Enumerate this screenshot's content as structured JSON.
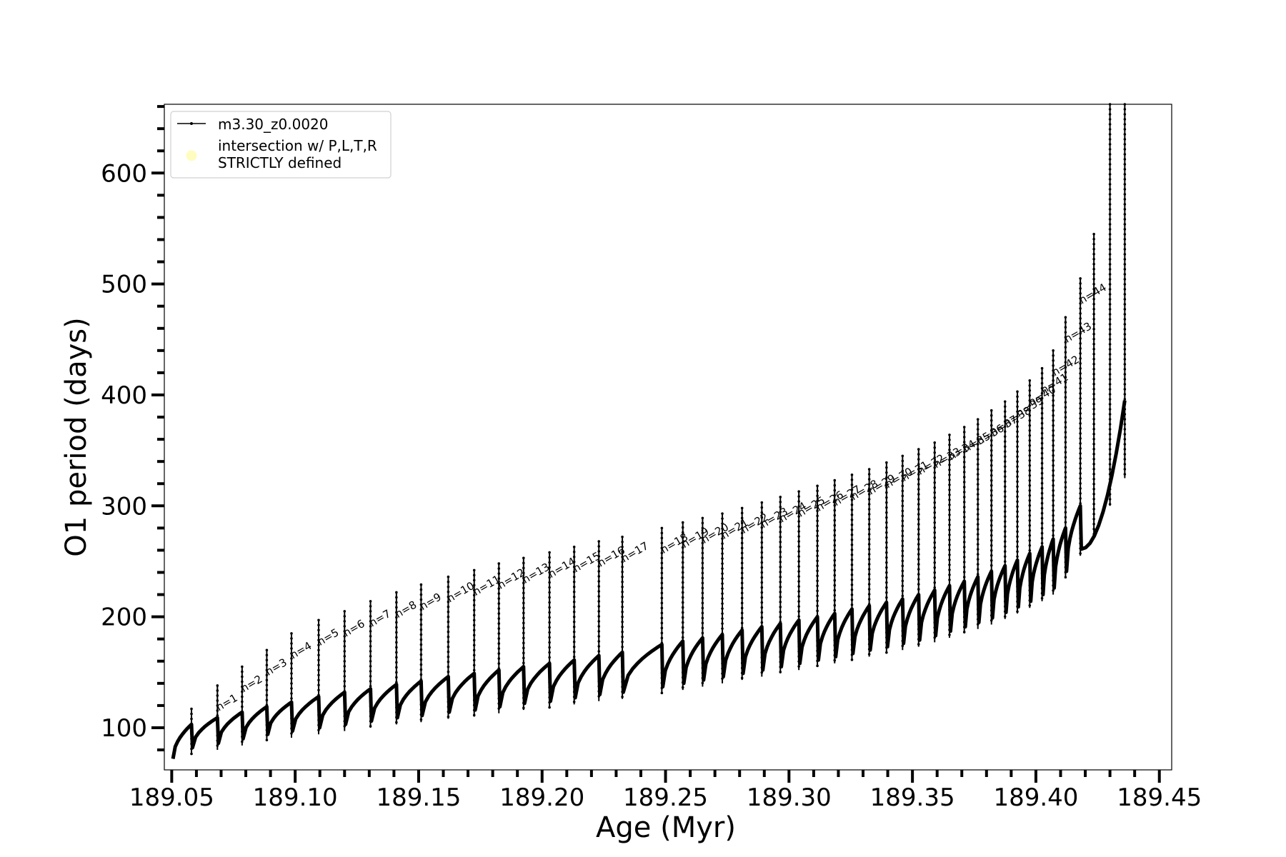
{
  "chart_data": {
    "type": "line",
    "title": "",
    "xlabel": "Age (Myr)",
    "ylabel": "O1 period (days)",
    "xlim": [
      189.047,
      189.455
    ],
    "ylim": [
      62,
      662
    ],
    "x_ticks": [
      189.05,
      189.1,
      189.15,
      189.2,
      189.25,
      189.3,
      189.35,
      189.4,
      189.45
    ],
    "x_tick_labels": [
      "189.05",
      "189.10",
      "189.15",
      "189.20",
      "189.25",
      "189.30",
      "189.35",
      "189.40",
      "189.45"
    ],
    "y_ticks": [
      100,
      200,
      300,
      400,
      500,
      600
    ],
    "y_tick_labels": [
      "100",
      "200",
      "300",
      "400",
      "500",
      "600"
    ],
    "y_minor_step": 20,
    "x_minor_step": 0.01,
    "grid": false,
    "legend": {
      "placement": "top-left",
      "entries": [
        {
          "label": "m3.30_z0.0020",
          "marker": "line-dot",
          "color": "#000000"
        },
        {
          "label": "intersection w/ P,L,T,R\nSTRICTLY defined",
          "marker": "circle",
          "color": "#fffcc0"
        }
      ]
    },
    "series": [
      {
        "name": "m3.30_z0.0020",
        "color": "#000000",
        "start": {
          "x": 189.0505,
          "y": 72
        },
        "first_pulse": {
          "x": 189.058,
          "top": 117,
          "bottom": 76
        },
        "pulses": [
          {
            "label": "n=1",
            "x": 189.0685,
            "top": 138,
            "base": 109,
            "bottom": 80
          },
          {
            "label": "n=2",
            "x": 189.0785,
            "top": 155,
            "base": 114,
            "bottom": 84
          },
          {
            "label": "n=3",
            "x": 189.0885,
            "top": 170,
            "base": 119,
            "bottom": 88
          },
          {
            "label": "n=4",
            "x": 189.0985,
            "top": 185,
            "base": 123,
            "bottom": 91
          },
          {
            "label": "n=5",
            "x": 189.1095,
            "top": 197,
            "base": 128,
            "bottom": 94
          },
          {
            "label": "n=6",
            "x": 189.12,
            "top": 205,
            "base": 132,
            "bottom": 97
          },
          {
            "label": "n=7",
            "x": 189.1305,
            "top": 214,
            "base": 135,
            "bottom": 100
          },
          {
            "label": "n=8",
            "x": 189.141,
            "top": 222,
            "base": 139,
            "bottom": 103
          },
          {
            "label": "n=9",
            "x": 189.151,
            "top": 229,
            "base": 142,
            "bottom": 105
          },
          {
            "label": "n=10",
            "x": 189.162,
            "top": 236,
            "base": 146,
            "bottom": 108
          },
          {
            "label": "n=11",
            "x": 189.1725,
            "top": 242,
            "base": 149,
            "bottom": 110
          },
          {
            "label": "n=12",
            "x": 189.1825,
            "top": 248,
            "base": 152,
            "bottom": 113
          },
          {
            "label": "n=13",
            "x": 189.1925,
            "top": 253,
            "base": 155,
            "bottom": 116
          },
          {
            "label": "n=14",
            "x": 189.203,
            "top": 258,
            "base": 158,
            "bottom": 118
          },
          {
            "label": "n=15",
            "x": 189.213,
            "top": 263,
            "base": 161,
            "bottom": 121
          },
          {
            "label": "n=16",
            "x": 189.223,
            "top": 268,
            "base": 165,
            "bottom": 124
          },
          {
            "label": "n=17",
            "x": 189.2325,
            "top": 272,
            "base": 168,
            "bottom": 126
          },
          {
            "label": "n=18",
            "x": 189.2485,
            "top": 280,
            "base": 175,
            "bottom": 131
          },
          {
            "label": "n=19",
            "x": 189.257,
            "top": 285,
            "base": 178,
            "bottom": 134
          },
          {
            "label": "n=20",
            "x": 189.265,
            "top": 289,
            "base": 181,
            "bottom": 137
          },
          {
            "label": "n=21",
            "x": 189.273,
            "top": 293,
            "base": 184,
            "bottom": 140
          },
          {
            "label": "n=22",
            "x": 189.281,
            "top": 298,
            "base": 188,
            "bottom": 143
          },
          {
            "label": "n=23",
            "x": 189.289,
            "top": 303,
            "base": 191,
            "bottom": 146
          },
          {
            "label": "n=24",
            "x": 189.2965,
            "top": 308,
            "base": 194,
            "bottom": 149
          },
          {
            "label": "n=25",
            "x": 189.304,
            "top": 313,
            "base": 197,
            "bottom": 152
          },
          {
            "label": "n=26",
            "x": 189.3115,
            "top": 318,
            "base": 200,
            "bottom": 155
          },
          {
            "label": "n=27",
            "x": 189.3185,
            "top": 323,
            "base": 203,
            "bottom": 158
          },
          {
            "label": "n=28",
            "x": 189.3255,
            "top": 328,
            "base": 207,
            "bottom": 161
          },
          {
            "label": "n=29",
            "x": 189.3325,
            "top": 333,
            "base": 210,
            "bottom": 164
          },
          {
            "label": "n=30",
            "x": 189.3395,
            "top": 339,
            "base": 213,
            "bottom": 167
          },
          {
            "label": "n=31",
            "x": 189.346,
            "top": 345,
            "base": 216,
            "bottom": 170
          },
          {
            "label": "n=32",
            "x": 189.3525,
            "top": 351,
            "base": 220,
            "bottom": 173
          },
          {
            "label": "n=33",
            "x": 189.359,
            "top": 357,
            "base": 224,
            "bottom": 177
          },
          {
            "label": "n=34",
            "x": 189.365,
            "top": 364,
            "base": 228,
            "bottom": 181
          },
          {
            "label": "n=35",
            "x": 189.371,
            "top": 371,
            "base": 232,
            "bottom": 185
          },
          {
            "label": "n=36",
            "x": 189.3765,
            "top": 378,
            "base": 236,
            "bottom": 189
          },
          {
            "label": "n=37",
            "x": 189.382,
            "top": 386,
            "base": 241,
            "bottom": 193
          },
          {
            "label": "n=38",
            "x": 189.3875,
            "top": 394,
            "base": 246,
            "bottom": 198
          },
          {
            "label": "n=39",
            "x": 189.3925,
            "top": 403,
            "base": 251,
            "bottom": 203
          },
          {
            "label": "n=40",
            "x": 189.3975,
            "top": 413,
            "base": 257,
            "bottom": 208
          },
          {
            "label": "n=41",
            "x": 189.4025,
            "top": 424,
            "base": 263,
            "bottom": 214
          },
          {
            "label": "n=42",
            "x": 189.407,
            "top": 440,
            "base": 270,
            "bottom": 220
          },
          {
            "label": "n=43",
            "x": 189.412,
            "top": 470,
            "base": 280,
            "bottom": 235
          },
          {
            "label": "n=44",
            "x": 189.418,
            "top": 505,
            "base": 300,
            "bottom": 255
          }
        ],
        "final_spikes": [
          {
            "x": 189.4235,
            "top": 545,
            "bottom": 272
          },
          {
            "x": 189.43,
            "top": 662,
            "bottom": 300
          },
          {
            "x": 189.436,
            "top": 662,
            "bottom": 325
          }
        ],
        "end": {
          "x": 189.436,
          "y": 395
        }
      }
    ]
  }
}
